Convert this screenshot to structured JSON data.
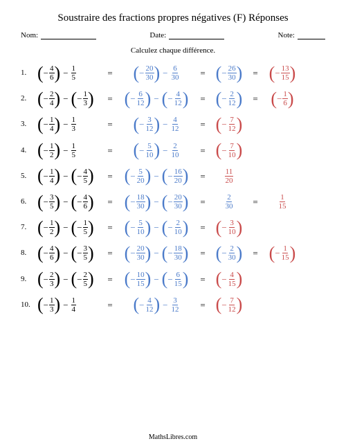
{
  "title": "Soustraire des fractions propres négatives (F) Réponses",
  "meta": {
    "nom_label": "Nom:",
    "date_label": "Date:",
    "note_label": "Note:"
  },
  "instructions": "Calculez chaque différence.",
  "footer": "MathsLibres.com",
  "colors": {
    "black": "#000000",
    "blue": "#4a7ac9",
    "red": "#c94a4a"
  },
  "problems": [
    {
      "idx": "1.",
      "a": {
        "n": "4",
        "d": "6",
        "neg": true,
        "paren": true,
        "color": "black"
      },
      "b": {
        "n": "1",
        "d": "5",
        "neg": false,
        "paren": false,
        "color": "black"
      },
      "c": {
        "n": "20",
        "d": "30",
        "neg": true,
        "paren": true,
        "color": "blue"
      },
      "d": {
        "n": "6",
        "d": "30",
        "neg": false,
        "paren": false,
        "color": "blue"
      },
      "e": {
        "n": "26",
        "d": "30",
        "neg": true,
        "paren": true,
        "color": "blue"
      },
      "f": {
        "n": "13",
        "d": "15",
        "neg": true,
        "paren": true,
        "color": "red"
      }
    },
    {
      "idx": "2.",
      "a": {
        "n": "2",
        "d": "4",
        "neg": true,
        "paren": true,
        "color": "black"
      },
      "b": {
        "n": "1",
        "d": "3",
        "neg": true,
        "paren": true,
        "color": "black"
      },
      "c": {
        "n": "6",
        "d": "12",
        "neg": true,
        "paren": true,
        "color": "blue"
      },
      "d": {
        "n": "4",
        "d": "12",
        "neg": true,
        "paren": true,
        "color": "blue"
      },
      "e": {
        "n": "2",
        "d": "12",
        "neg": true,
        "paren": true,
        "color": "blue"
      },
      "f": {
        "n": "1",
        "d": "6",
        "neg": true,
        "paren": true,
        "color": "red"
      }
    },
    {
      "idx": "3.",
      "a": {
        "n": "1",
        "d": "4",
        "neg": true,
        "paren": true,
        "color": "black"
      },
      "b": {
        "n": "1",
        "d": "3",
        "neg": false,
        "paren": false,
        "color": "black"
      },
      "c": {
        "n": "3",
        "d": "12",
        "neg": true,
        "paren": true,
        "color": "blue"
      },
      "d": {
        "n": "4",
        "d": "12",
        "neg": false,
        "paren": false,
        "color": "blue"
      },
      "e": {
        "n": "7",
        "d": "12",
        "neg": true,
        "paren": true,
        "color": "red"
      },
      "f": null
    },
    {
      "idx": "4.",
      "a": {
        "n": "1",
        "d": "2",
        "neg": true,
        "paren": true,
        "color": "black"
      },
      "b": {
        "n": "1",
        "d": "5",
        "neg": false,
        "paren": false,
        "color": "black"
      },
      "c": {
        "n": "5",
        "d": "10",
        "neg": true,
        "paren": true,
        "color": "blue"
      },
      "d": {
        "n": "2",
        "d": "10",
        "neg": false,
        "paren": false,
        "color": "blue"
      },
      "e": {
        "n": "7",
        "d": "10",
        "neg": true,
        "paren": true,
        "color": "red"
      },
      "f": null
    },
    {
      "idx": "5.",
      "a": {
        "n": "1",
        "d": "4",
        "neg": true,
        "paren": true,
        "color": "black"
      },
      "b": {
        "n": "4",
        "d": "5",
        "neg": true,
        "paren": true,
        "color": "black"
      },
      "c": {
        "n": "5",
        "d": "20",
        "neg": true,
        "paren": true,
        "color": "blue"
      },
      "d": {
        "n": "16",
        "d": "20",
        "neg": true,
        "paren": true,
        "color": "blue"
      },
      "e": {
        "n": "11",
        "d": "20",
        "neg": false,
        "paren": false,
        "color": "red"
      },
      "f": null
    },
    {
      "idx": "6.",
      "a": {
        "n": "3",
        "d": "5",
        "neg": true,
        "paren": true,
        "color": "black"
      },
      "b": {
        "n": "4",
        "d": "6",
        "neg": true,
        "paren": true,
        "color": "black"
      },
      "c": {
        "n": "18",
        "d": "30",
        "neg": true,
        "paren": true,
        "color": "blue"
      },
      "d": {
        "n": "20",
        "d": "30",
        "neg": true,
        "paren": true,
        "color": "blue"
      },
      "e": {
        "n": "2",
        "d": "30",
        "neg": false,
        "paren": false,
        "color": "blue"
      },
      "f": {
        "n": "1",
        "d": "15",
        "neg": false,
        "paren": false,
        "color": "red"
      }
    },
    {
      "idx": "7.",
      "a": {
        "n": "1",
        "d": "2",
        "neg": true,
        "paren": true,
        "color": "black"
      },
      "b": {
        "n": "1",
        "d": "5",
        "neg": true,
        "paren": true,
        "color": "black"
      },
      "c": {
        "n": "5",
        "d": "10",
        "neg": true,
        "paren": true,
        "color": "blue"
      },
      "d": {
        "n": "2",
        "d": "10",
        "neg": true,
        "paren": true,
        "color": "blue"
      },
      "e": {
        "n": "3",
        "d": "10",
        "neg": true,
        "paren": true,
        "color": "red"
      },
      "f": null
    },
    {
      "idx": "8.",
      "a": {
        "n": "4",
        "d": "6",
        "neg": true,
        "paren": true,
        "color": "black"
      },
      "b": {
        "n": "3",
        "d": "5",
        "neg": true,
        "paren": true,
        "color": "black"
      },
      "c": {
        "n": "20",
        "d": "30",
        "neg": true,
        "paren": true,
        "color": "blue"
      },
      "d": {
        "n": "18",
        "d": "30",
        "neg": true,
        "paren": true,
        "color": "blue"
      },
      "e": {
        "n": "2",
        "d": "30",
        "neg": true,
        "paren": true,
        "color": "blue"
      },
      "f": {
        "n": "1",
        "d": "15",
        "neg": true,
        "paren": true,
        "color": "red"
      }
    },
    {
      "idx": "9.",
      "a": {
        "n": "2",
        "d": "3",
        "neg": true,
        "paren": true,
        "color": "black"
      },
      "b": {
        "n": "2",
        "d": "5",
        "neg": true,
        "paren": true,
        "color": "black"
      },
      "c": {
        "n": "10",
        "d": "15",
        "neg": true,
        "paren": true,
        "color": "blue"
      },
      "d": {
        "n": "6",
        "d": "15",
        "neg": true,
        "paren": true,
        "color": "blue"
      },
      "e": {
        "n": "4",
        "d": "15",
        "neg": true,
        "paren": true,
        "color": "red"
      },
      "f": null
    },
    {
      "idx": "10.",
      "a": {
        "n": "1",
        "d": "3",
        "neg": true,
        "paren": true,
        "color": "black"
      },
      "b": {
        "n": "1",
        "d": "4",
        "neg": false,
        "paren": false,
        "color": "black"
      },
      "c": {
        "n": "4",
        "d": "12",
        "neg": true,
        "paren": true,
        "color": "blue"
      },
      "d": {
        "n": "3",
        "d": "12",
        "neg": false,
        "paren": false,
        "color": "blue"
      },
      "e": {
        "n": "7",
        "d": "12",
        "neg": true,
        "paren": true,
        "color": "red"
      },
      "f": null
    }
  ]
}
